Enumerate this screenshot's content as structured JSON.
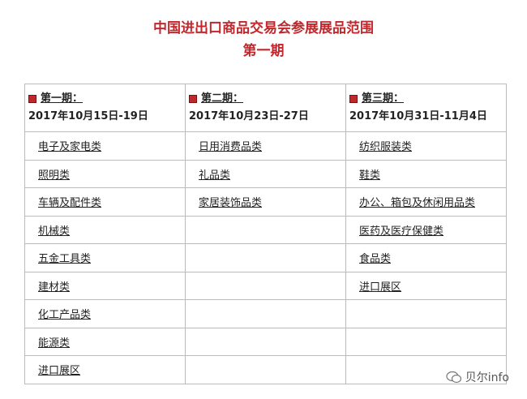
{
  "header": {
    "title": "中国进出口商品交易会参展展品范围",
    "subtitle": "第一期"
  },
  "table": {
    "columns": [
      {
        "phase": "第一期：",
        "dates": "2017年10月15日-19日",
        "items": [
          "电子及家电类",
          "照明类",
          "车辆及配件类",
          "机械类",
          "五金工具类",
          "建材类",
          "化工产品类",
          "能源类",
          "进口展区"
        ]
      },
      {
        "phase": "第二期：",
        "dates": "2017年10月23日-27日",
        "items": [
          "日用消费品类",
          "礼品类",
          "家居装饰品类"
        ]
      },
      {
        "phase": "第三期：",
        "dates": "2017年10月31日-11月4日",
        "items": [
          "纺织服装类",
          "鞋类",
          "办公、箱包及休闲用品类",
          "医药及医疗保健类",
          "食品类",
          "进口展区"
        ]
      }
    ]
  },
  "watermark": "贝尔info"
}
